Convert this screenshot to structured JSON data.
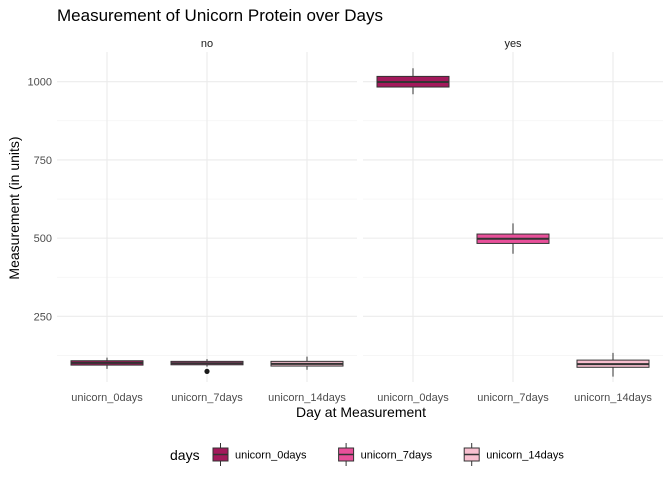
{
  "chart_data": {
    "type": "box",
    "title": "Measurement of Unicorn Protein over Days",
    "xlabel": "Day at Measurement",
    "ylabel": "Measurement (in units)",
    "facet_variable": "",
    "facets": [
      "no",
      "yes"
    ],
    "categories": [
      "unicorn_0days",
      "unicorn_7days",
      "unicorn_14days"
    ],
    "ylim": [
      40,
      1095
    ],
    "yticks": [
      250,
      500,
      750,
      1000
    ],
    "grid": true,
    "legend": {
      "title": "days",
      "position": "bottom",
      "entries": [
        {
          "label": "unicorn_0days",
          "color": "#A3195B"
        },
        {
          "label": "unicorn_7days",
          "color": "#E8509A"
        },
        {
          "label": "unicorn_14days",
          "color": "#F8BFCF"
        }
      ]
    },
    "boxes": [
      {
        "facet": "no",
        "category": "unicorn_0days",
        "min": 82,
        "q1": 94,
        "median": 101,
        "q3": 108,
        "max": 118,
        "outliers": []
      },
      {
        "facet": "no",
        "category": "unicorn_7days",
        "min": 89,
        "q1": 95,
        "median": 100,
        "q3": 106,
        "max": 113,
        "outliers": [
          74
        ]
      },
      {
        "facet": "no",
        "category": "unicorn_14days",
        "min": 79,
        "q1": 91,
        "median": 98,
        "q3": 106,
        "max": 121,
        "outliers": []
      },
      {
        "facet": "yes",
        "category": "unicorn_0days",
        "min": 960,
        "q1": 983,
        "median": 999,
        "q3": 1017,
        "max": 1043,
        "outliers": []
      },
      {
        "facet": "yes",
        "category": "unicorn_7days",
        "min": 450,
        "q1": 483,
        "median": 498,
        "q3": 513,
        "max": 547,
        "outliers": []
      },
      {
        "facet": "yes",
        "category": "unicorn_14days",
        "min": 57,
        "q1": 87,
        "median": 97,
        "q3": 110,
        "max": 133,
        "outliers": []
      }
    ]
  }
}
